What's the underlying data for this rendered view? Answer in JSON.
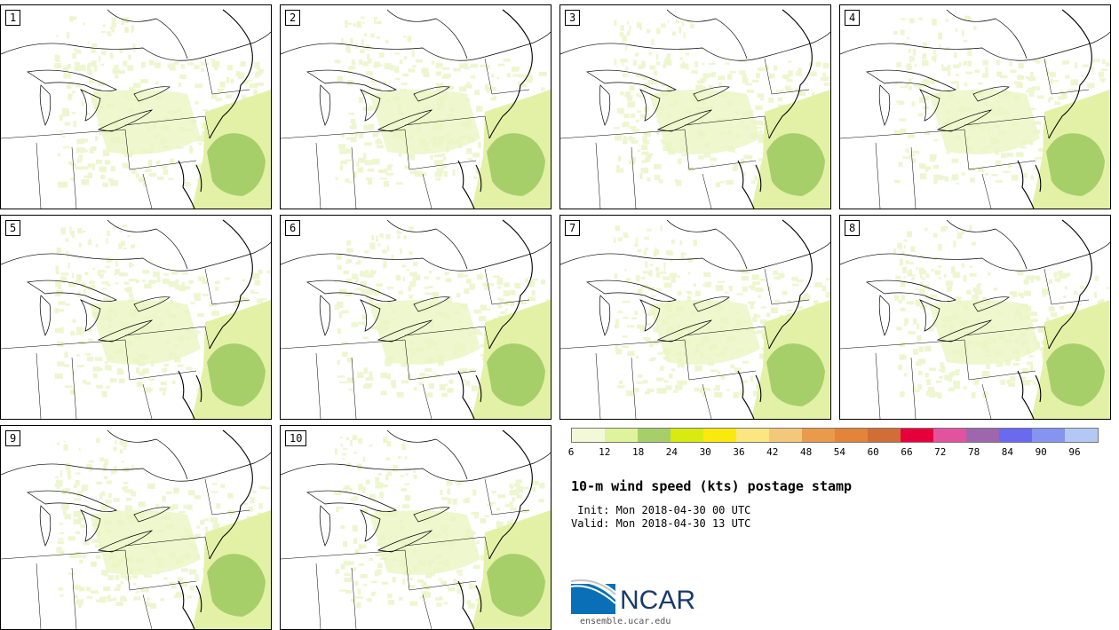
{
  "panels": [
    {
      "label": "1"
    },
    {
      "label": "2"
    },
    {
      "label": "3"
    },
    {
      "label": "4"
    },
    {
      "label": "5"
    },
    {
      "label": "6"
    },
    {
      "label": "7"
    },
    {
      "label": "8"
    },
    {
      "label": "9"
    },
    {
      "label": "10"
    }
  ],
  "colorbar": {
    "colors": [
      "#f2f8d8",
      "#dff29c",
      "#a6cf6a",
      "#d8ea10",
      "#fbe90e",
      "#fde680",
      "#f3c87b",
      "#e99a4b",
      "#e3843a",
      "#d16e36",
      "#e6003b",
      "#e2529e",
      "#9e66ad",
      "#6a6af0",
      "#8594f0",
      "#b4c8f5"
    ],
    "ticks": [
      "6",
      "12",
      "18",
      "24",
      "30",
      "36",
      "42",
      "48",
      "54",
      "60",
      "66",
      "72",
      "78",
      "84",
      "90",
      "96"
    ]
  },
  "title": "10-m wind speed (kts) postage stamp",
  "init": " Init: Mon 2018-04-30 00 UTC",
  "valid": "Valid: Mon 2018-04-30 13 UTC",
  "logo": {
    "text": "NCAR",
    "url": "ensemble.ucar.edu"
  }
}
